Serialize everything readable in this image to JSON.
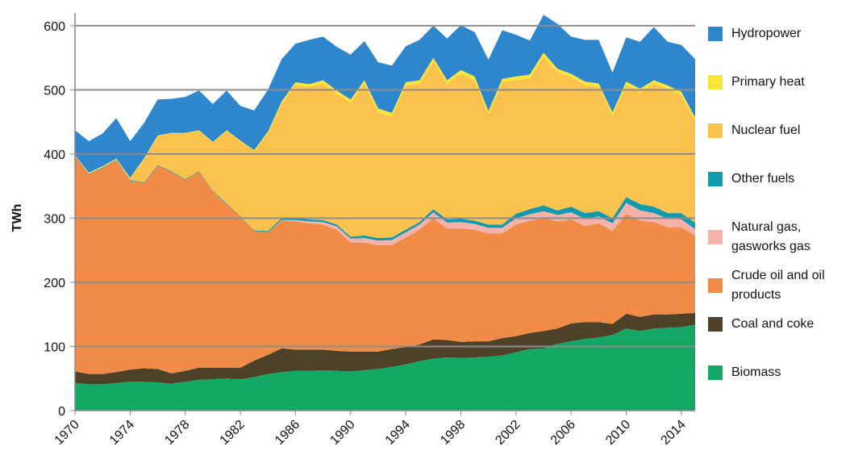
{
  "chart_data": {
    "type": "stacked-area",
    "y_label": "TWh",
    "x": [
      1970,
      1971,
      1972,
      1973,
      1974,
      1975,
      1976,
      1977,
      1978,
      1979,
      1980,
      1981,
      1982,
      1983,
      1984,
      1985,
      1986,
      1987,
      1988,
      1989,
      1990,
      1991,
      1992,
      1993,
      1994,
      1995,
      1996,
      1997,
      1998,
      1999,
      2000,
      2001,
      2002,
      2003,
      2004,
      2005,
      2006,
      2007,
      2008,
      2009,
      2010,
      2011,
      2012,
      2013,
      2014,
      2015
    ],
    "xlim": [
      1970,
      2015
    ],
    "xticks": [
      1970,
      1974,
      1978,
      1982,
      1986,
      1990,
      1994,
      1998,
      2002,
      2006,
      2010,
      2014
    ],
    "ylim": [
      0,
      620
    ],
    "yticks": [
      0,
      100,
      200,
      300,
      400,
      500,
      600
    ],
    "grid": true,
    "series": [
      {
        "name": "Biomass",
        "color": "#13a864",
        "values": [
          43,
          41,
          41,
          43,
          45,
          45,
          44,
          42,
          45,
          48,
          49,
          50,
          49,
          52,
          57,
          60,
          62,
          62,
          63,
          62,
          61,
          63,
          65,
          68,
          72,
          77,
          81,
          83,
          82,
          83,
          84,
          86,
          91,
          96,
          97,
          104,
          108,
          112,
          114,
          118,
          128,
          124,
          128,
          129,
          130,
          134
        ]
      },
      {
        "name": "Coal and coke",
        "color": "#4d4127",
        "values": [
          18,
          16,
          16,
          17,
          19,
          21,
          21,
          16,
          17,
          19,
          18,
          17,
          18,
          26,
          30,
          37,
          33,
          33,
          32,
          31,
          31,
          29,
          27,
          28,
          27,
          26,
          30,
          27,
          25,
          25,
          24,
          27,
          25,
          25,
          27,
          24,
          28,
          26,
          24,
          17,
          23,
          22,
          22,
          21,
          21,
          18
        ]
      },
      {
        "name": "Crude oil and oil products",
        "color": "#f08c48",
        "values": [
          336,
          311,
          321,
          330,
          294,
          289,
          317,
          314,
          298,
          305,
          275,
          255,
          235,
          202,
          191,
          199,
          200,
          197,
          195,
          189,
          170,
          170,
          166,
          162,
          171,
          179,
          189,
          174,
          177,
          174,
          168,
          163,
          174,
          175,
          176,
          167,
          162,
          150,
          154,
          145,
          156,
          150,
          144,
          136,
          135,
          121
        ]
      },
      {
        "name": "Natural gas, gasworks gas",
        "color": "#f4b2aa",
        "values": [
          0,
          0,
          0,
          0,
          0,
          0,
          0,
          0,
          0,
          0,
          0,
          0,
          0,
          0,
          0,
          1,
          2,
          3,
          4,
          5,
          6,
          7,
          7,
          8,
          8,
          8,
          9,
          9,
          10,
          9,
          9,
          9,
          10,
          10,
          11,
          10,
          11,
          11,
          11,
          12,
          17,
          16,
          14,
          13,
          12,
          10
        ]
      },
      {
        "name": "Other fuels",
        "color": "#1199b0",
        "values": [
          1,
          1,
          1,
          1,
          1,
          1,
          1,
          1,
          1,
          1,
          1,
          1,
          1,
          1,
          2,
          3,
          3,
          3,
          3,
          3,
          3,
          4,
          4,
          4,
          4,
          4,
          5,
          5,
          5,
          5,
          5,
          5,
          7,
          8,
          9,
          7,
          9,
          9,
          8,
          8,
          9,
          10,
          10,
          9,
          10,
          10
        ]
      },
      {
        "name": "Nuclear fuel",
        "color": "#fbc34e",
        "values": [
          0,
          1,
          1,
          1,
          3,
          36,
          45,
          59,
          71,
          63,
          75,
          113,
          117,
          124,
          152,
          178,
          208,
          207,
          213,
          204,
          209,
          237,
          196,
          188,
          225,
          216,
          231,
          212,
          226,
          219,
          172,
          222,
          208,
          204,
          232,
          216,
          202,
          200,
          194,
          160,
          175,
          175,
          192,
          194,
          184,
          159
        ]
      },
      {
        "name": "Primary heat",
        "color": "#f5e637",
        "values": [
          1,
          1,
          1,
          1,
          1,
          1,
          1,
          1,
          1,
          1,
          1,
          1,
          1,
          1,
          3,
          4,
          4,
          4,
          5,
          5,
          5,
          5,
          6,
          6,
          5,
          5,
          5,
          5,
          6,
          6,
          5,
          5,
          6,
          6,
          6,
          5,
          5,
          5,
          5,
          5,
          5,
          5,
          5,
          5,
          5,
          5
        ]
      },
      {
        "name": "Hydropower",
        "color": "#2e86cc",
        "values": [
          38,
          49,
          51,
          63,
          57,
          55,
          56,
          53,
          56,
          62,
          59,
          62,
          54,
          62,
          65,
          66,
          60,
          69,
          68,
          68,
          70,
          61,
          72,
          74,
          56,
          63,
          50,
          65,
          70,
          69,
          80,
          76,
          65,
          53,
          59,
          70,
          58,
          65,
          68,
          62,
          69,
          73,
          83,
          68,
          73,
          91
        ]
      }
    ]
  }
}
